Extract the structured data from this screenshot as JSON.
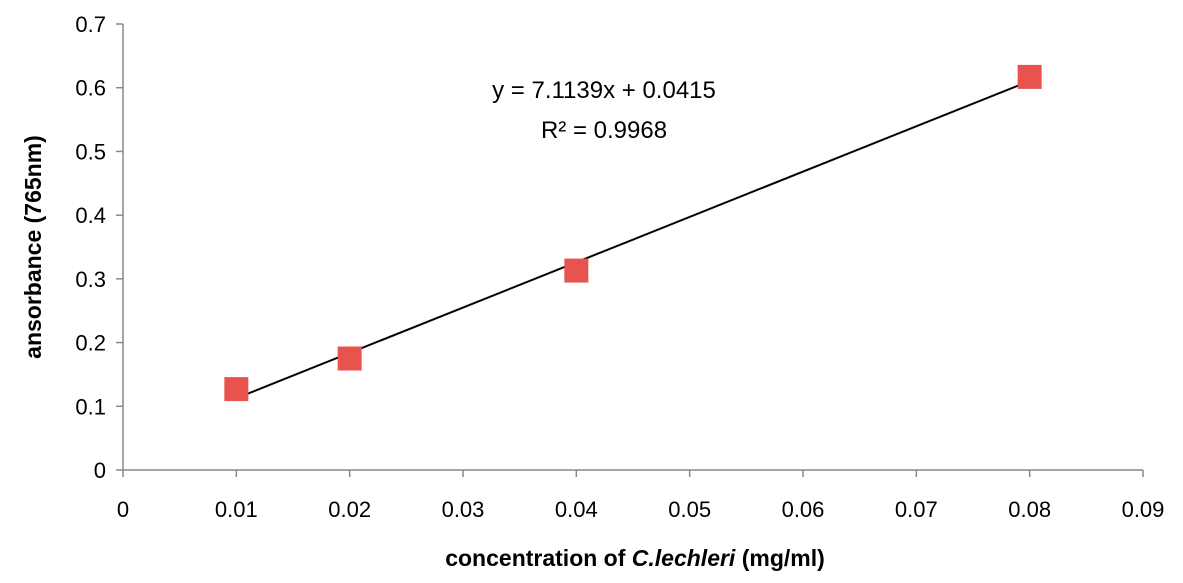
{
  "chart_data": {
    "type": "scatter",
    "title": "",
    "xlabel": {
      "prefix": "concentration of ",
      "italic": "C.lechleri",
      "suffix": " (mg/ml)"
    },
    "ylabel": "ansorbance (765nm)",
    "xlim": [
      0,
      0.09
    ],
    "ylim": [
      0,
      0.7
    ],
    "x_ticks": [
      "0",
      "0.01",
      "0.02",
      "0.03",
      "0.04",
      "0.05",
      "0.06",
      "0.07",
      "0.08",
      "0.09"
    ],
    "y_ticks": [
      "0",
      "0.1",
      "0.2",
      "0.3",
      "0.4",
      "0.5",
      "0.6",
      "0.7"
    ],
    "series": [
      {
        "points": [
          {
            "x": 0.01,
            "y": 0.127
          },
          {
            "x": 0.02,
            "y": 0.175
          },
          {
            "x": 0.04,
            "y": 0.313
          },
          {
            "x": 0.08,
            "y": 0.617
          }
        ],
        "color": "#e8534f",
        "marker": "square"
      }
    ],
    "trendline": {
      "slope": 7.1139,
      "intercept": 0.0415,
      "x_range": [
        0.01,
        0.08
      ],
      "color": "#000000"
    },
    "annotations": {
      "equation": "y = 7.1139x + 0.0415",
      "r_squared": "R² = 0.9968"
    },
    "grid": false,
    "legend": "none"
  }
}
